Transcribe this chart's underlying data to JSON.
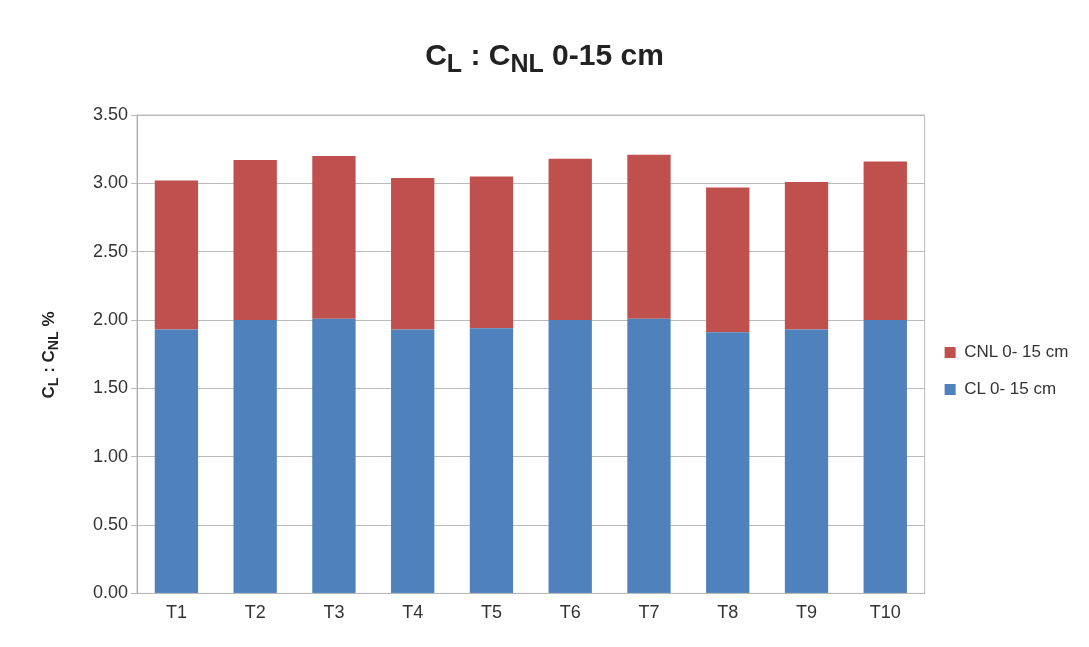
{
  "chart_data": {
    "type": "bar",
    "title": "C$_{L}$ : C$_{NL}$  0-15 cm",
    "ylabel": "C$_{L}$ : C$_{NL}$ %",
    "categories": [
      "T1",
      "T2",
      "T3",
      "T4",
      "T5",
      "T6",
      "T7",
      "T8",
      "T9",
      "T10"
    ],
    "series": [
      {
        "name": "CL 0- 15 cm",
        "color": "#4f81bd",
        "values": [
          1.93,
          2.0,
          2.01,
          1.93,
          1.94,
          2.0,
          2.01,
          1.91,
          1.93,
          2.0
        ]
      },
      {
        "name": "CNL 0- 15 cm",
        "color": "#c0504d",
        "values": [
          1.09,
          1.17,
          1.19,
          1.11,
          1.11,
          1.18,
          1.2,
          1.06,
          1.08,
          1.16
        ]
      }
    ],
    "stacked": true,
    "ylim": [
      0,
      3.5
    ],
    "yticks": [
      {
        "value": 0,
        "label": "0.00"
      },
      {
        "value": 0.5,
        "label": "0.50"
      },
      {
        "value": 1,
        "label": "1.00"
      },
      {
        "value": 1.5,
        "label": "1.50"
      },
      {
        "value": 2,
        "label": "2.00"
      },
      {
        "value": 2.5,
        "label": "2.50"
      },
      {
        "value": 3,
        "label": "3.00"
      },
      {
        "value": 3.5,
        "label": "3.50"
      }
    ],
    "grid": "y",
    "legend": "right"
  }
}
